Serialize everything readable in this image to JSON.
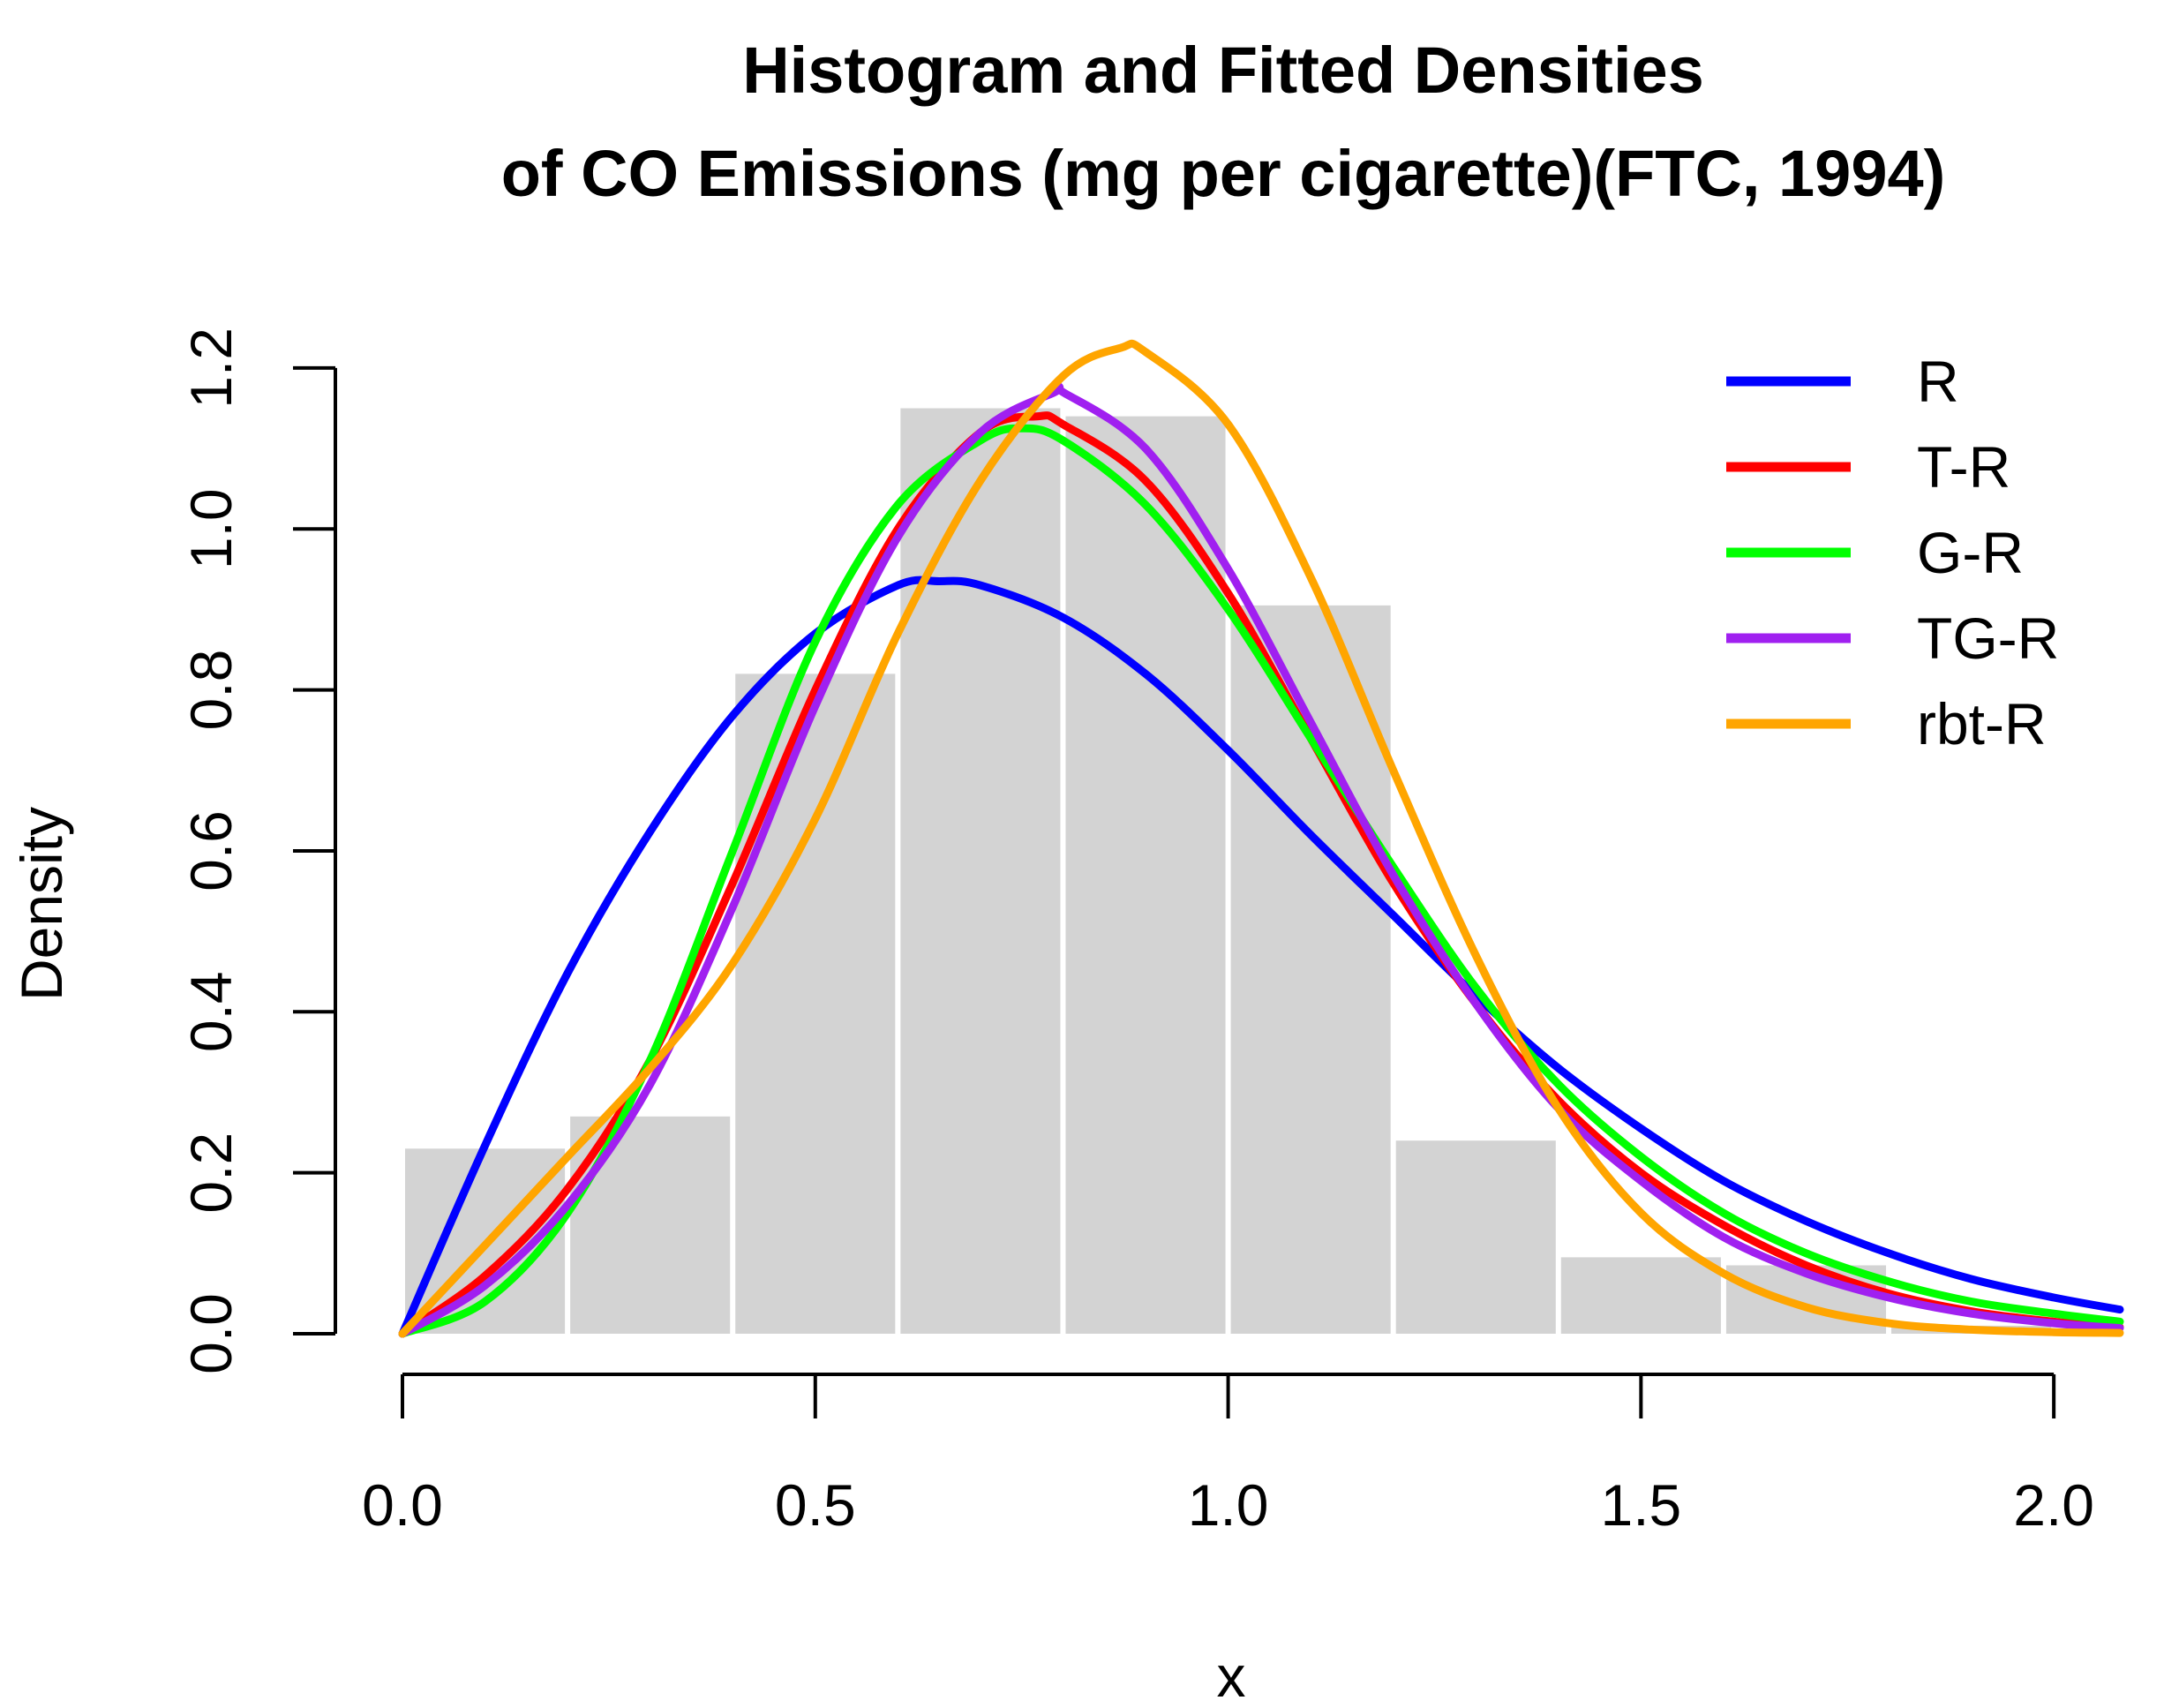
{
  "chart_data": {
    "type": "histogram with fitted density lines",
    "title": [
      "Histogram and Fitted Densities",
      "of CO Emissions (mg per cigarette)(FTC, 1994)"
    ],
    "xlabel": "x",
    "ylabel": "Density",
    "xlim": [
      0,
      2.08
    ],
    "ylim": [
      0,
      1.235
    ],
    "x_ticks": [
      "0.0",
      "0.5",
      "1.0",
      "1.5",
      "2.0"
    ],
    "x_tick_values": [
      0,
      0.5,
      1.0,
      1.5,
      2.0
    ],
    "y_ticks": [
      "0.0",
      "0.2",
      "0.4",
      "0.6",
      "0.8",
      "1.0",
      "1.2"
    ],
    "y_tick_values": [
      0,
      0.2,
      0.4,
      0.6,
      0.8,
      1.0,
      1.2
    ],
    "histogram": {
      "color": "#d3d3d3",
      "bins": [
        {
          "from": 0.0,
          "to": 0.2,
          "density": 0.23
        },
        {
          "from": 0.2,
          "to": 0.4,
          "density": 0.27
        },
        {
          "from": 0.4,
          "to": 0.6,
          "density": 0.82
        },
        {
          "from": 0.6,
          "to": 0.8,
          "density": 1.15
        },
        {
          "from": 0.8,
          "to": 1.0,
          "density": 1.14
        },
        {
          "from": 1.0,
          "to": 1.2,
          "density": 0.905
        },
        {
          "from": 1.2,
          "to": 1.4,
          "density": 0.24
        },
        {
          "from": 1.4,
          "to": 1.6,
          "density": 0.095
        },
        {
          "from": 1.6,
          "to": 1.8,
          "density": 0.085
        },
        {
          "from": 1.8,
          "to": 2.0,
          "density": 0.01
        }
      ]
    },
    "series": [
      {
        "name": "R",
        "color": "#0000ff",
        "x": [
          0,
          0.1,
          0.2,
          0.3,
          0.4,
          0.5,
          0.6,
          0.65,
          0.7,
          0.8,
          0.9,
          1.0,
          1.1,
          1.2,
          1.3,
          1.4,
          1.5,
          1.6,
          1.7,
          1.8,
          1.9,
          2.0,
          2.08
        ],
        "y": [
          0,
          0.234,
          0.448,
          0.624,
          0.768,
          0.87,
          0.93,
          0.935,
          0.93,
          0.89,
          0.82,
          0.725,
          0.62,
          0.52,
          0.42,
          0.33,
          0.255,
          0.19,
          0.14,
          0.1,
          0.068,
          0.045,
          0.03
        ]
      },
      {
        "name": "T-R",
        "color": "#ff0000",
        "x": [
          0,
          0.1,
          0.2,
          0.3,
          0.4,
          0.5,
          0.6,
          0.7,
          0.77,
          0.8,
          0.9,
          1.0,
          1.1,
          1.2,
          1.3,
          1.4,
          1.5,
          1.6,
          1.7,
          1.8,
          1.9,
          2.0,
          2.08
        ],
        "y": [
          0,
          0.072,
          0.18,
          0.34,
          0.56,
          0.8,
          1.0,
          1.12,
          1.14,
          1.13,
          1.06,
          0.92,
          0.74,
          0.56,
          0.41,
          0.29,
          0.2,
          0.135,
          0.085,
          0.05,
          0.028,
          0.015,
          0.008
        ]
      },
      {
        "name": "G-R",
        "color": "#00ff00",
        "x": [
          0,
          0.1,
          0.2,
          0.3,
          0.4,
          0.5,
          0.6,
          0.7,
          0.75,
          0.8,
          0.9,
          1.0,
          1.1,
          1.2,
          1.3,
          1.4,
          1.5,
          1.6,
          1.7,
          1.8,
          1.9,
          2.0,
          2.08
        ],
        "y": [
          0,
          0.04,
          0.15,
          0.34,
          0.6,
          0.86,
          1.03,
          1.11,
          1.125,
          1.11,
          1.03,
          0.9,
          0.74,
          0.58,
          0.43,
          0.31,
          0.22,
          0.15,
          0.1,
          0.065,
          0.04,
          0.025,
          0.015
        ]
      },
      {
        "name": "TG-R",
        "color": "#a020f0",
        "x": [
          0,
          0.1,
          0.2,
          0.3,
          0.4,
          0.5,
          0.6,
          0.7,
          0.79,
          0.8,
          0.9,
          1.0,
          1.1,
          1.2,
          1.3,
          1.4,
          1.5,
          1.6,
          1.7,
          1.8,
          1.9,
          2.0,
          2.08
        ],
        "y": [
          0,
          0.06,
          0.16,
          0.31,
          0.53,
          0.78,
          0.99,
          1.12,
          1.17,
          1.17,
          1.1,
          0.95,
          0.76,
          0.57,
          0.41,
          0.28,
          0.19,
          0.12,
          0.075,
          0.045,
          0.025,
          0.013,
          0.007
        ]
      },
      {
        "name": "rbt-R",
        "color": "#ffa500",
        "x": [
          0,
          0.1,
          0.2,
          0.3,
          0.4,
          0.5,
          0.6,
          0.7,
          0.8,
          0.87,
          0.9,
          1.0,
          1.1,
          1.2,
          1.3,
          1.4,
          1.5,
          1.6,
          1.7,
          1.8,
          1.9,
          2.0,
          2.08
        ],
        "y": [
          0,
          0.11,
          0.22,
          0.33,
          0.46,
          0.64,
          0.87,
          1.06,
          1.19,
          1.225,
          1.22,
          1.13,
          0.94,
          0.7,
          0.47,
          0.28,
          0.15,
          0.075,
          0.033,
          0.013,
          0.005,
          0.002,
          0.001
        ]
      }
    ],
    "legend": {
      "position": "top-right",
      "entries": [
        "R",
        "T-R",
        "G-R",
        "TG-R",
        "rbt-R"
      ]
    }
  }
}
